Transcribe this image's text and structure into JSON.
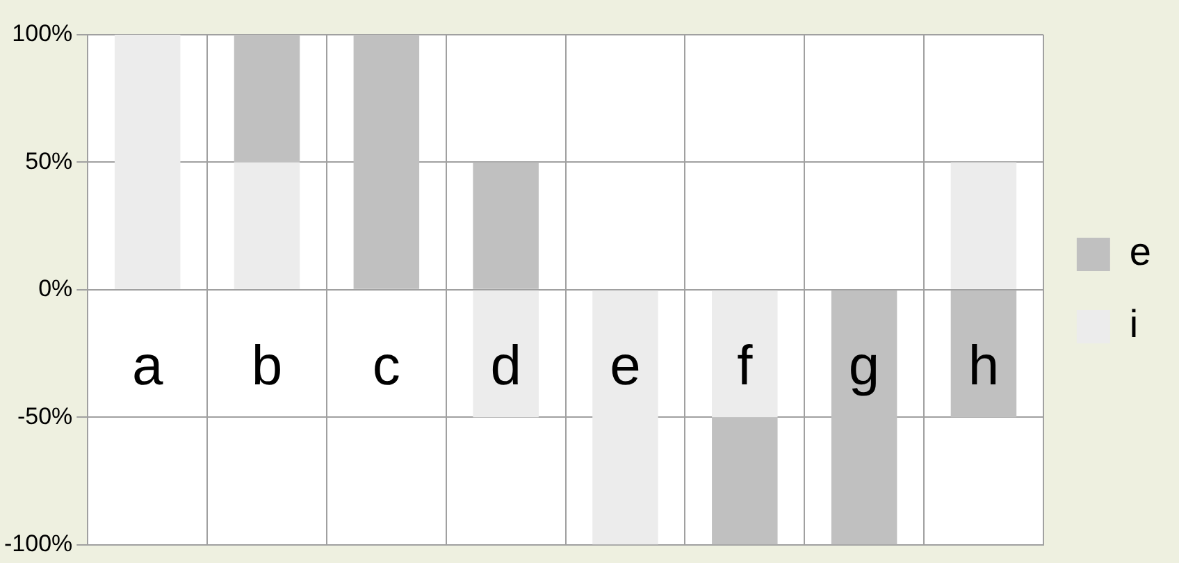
{
  "chart_data": {
    "type": "bar",
    "stacked": true,
    "categories": [
      "a",
      "b",
      "c",
      "d",
      "e",
      "f",
      "g",
      "h"
    ],
    "series": [
      {
        "name": "i",
        "color": "#ececec",
        "values": [
          100,
          50,
          0,
          -50,
          -100,
          -50,
          0,
          50
        ]
      },
      {
        "name": "e",
        "color": "#c0c0c0",
        "values": [
          0,
          50,
          100,
          50,
          0,
          -50,
          -100,
          -50
        ]
      }
    ],
    "ylim": [
      -100,
      100
    ],
    "yticks": [
      {
        "value": -100,
        "label": "-100%"
      },
      {
        "value": -50,
        "label": "-50%"
      },
      {
        "value": 0,
        "label": "0%"
      },
      {
        "value": 50,
        "label": "50%"
      },
      {
        "value": 100,
        "label": "100%"
      }
    ],
    "grid": true,
    "legend": "right"
  }
}
